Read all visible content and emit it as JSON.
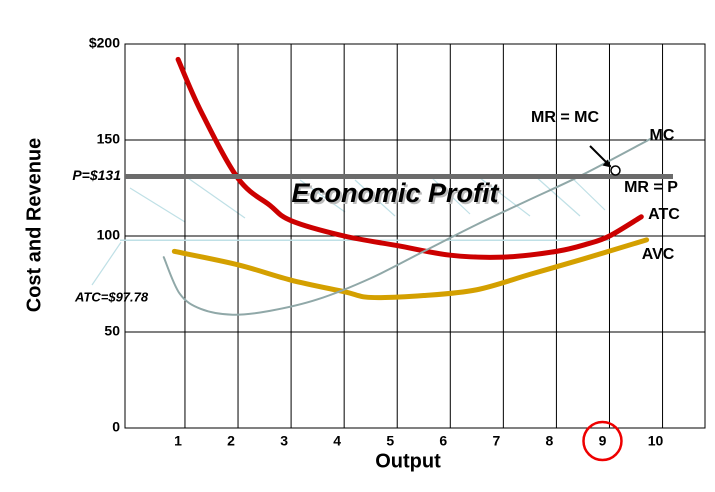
{
  "chart_data": {
    "type": "line",
    "x_label": "Output",
    "y_label": "Cost and Revenue",
    "xlim": [
      -0.13,
      10.8
    ],
    "xticks": [
      1,
      2,
      3,
      4,
      5,
      6,
      7,
      8,
      9,
      10
    ],
    "ylim": [
      0,
      200
    ],
    "yticks": [
      0,
      50,
      100,
      150,
      {
        "value": 200,
        "label": "$200"
      }
    ],
    "grid": true,
    "highlighted_tick": 9,
    "series": [
      {
        "name": "ATC",
        "color": "#cc0000",
        "x": [
          0.87,
          1.3,
          2,
          2.6,
          3,
          4,
          5,
          6,
          7,
          8,
          8.6,
          9,
          9.6
        ],
        "values": [
          192,
          165,
          130,
          116,
          108,
          100,
          95,
          90,
          89,
          92,
          96,
          100,
          110
        ]
      },
      {
        "name": "AVC",
        "color": "#d4a000",
        "x": [
          0.8,
          2,
          3,
          4,
          4.5,
          5.5,
          6.5,
          7.5,
          8.5,
          9.7
        ],
        "values": [
          92,
          85,
          77,
          71,
          68,
          69,
          72,
          80,
          88,
          98
        ]
      },
      {
        "name": "MC",
        "color": "#90a8a8",
        "x": [
          0.6,
          0.9,
          1.3,
          1.9,
          2.6,
          3.5,
          4.5,
          5.5,
          6.5,
          7.5,
          8.5,
          9.8
        ],
        "values": [
          89,
          70,
          62,
          59,
          61,
          67,
          78,
          92,
          106,
          119,
          132,
          151
        ]
      }
    ],
    "price_line": {
      "label": "P=$131",
      "value": 131,
      "color": "#6b6b6b"
    },
    "atc_line": {
      "label": "ATC=$97.78",
      "value": 97.78,
      "color": "#bfe0e6"
    },
    "annotations": [
      "Economic Profit",
      "MR = MC",
      "MR = P"
    ]
  }
}
